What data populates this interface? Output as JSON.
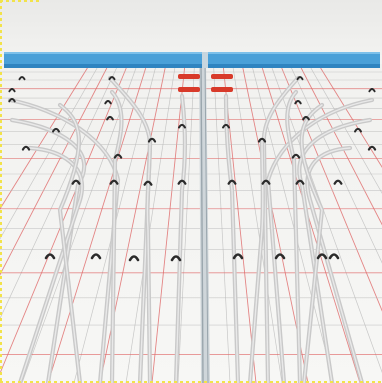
{
  "scene": {
    "subject": "underfloor-heating-pipe-layout",
    "colors": {
      "background_wall": "#efefed",
      "edge_strip": "#4aa0d8",
      "edge_strip_dark": "#2f84c0",
      "insulation_board": "#f3f3f1",
      "grid_line_gray": "#b9b9b9",
      "grid_line_red": "#e06a6a",
      "pipe": "#c9c9c9",
      "pipe_highlight": "#e9e9e9",
      "clip": "#2b2b2b",
      "manifold_marker": "#d83a2a",
      "center_divider": "#9aa6ad",
      "dotted_border": "#f2e34a"
    },
    "elements": [
      "wall",
      "blue-edge-strip",
      "insulation-board-with-grid",
      "heating-pipe-loops",
      "pipe-clips",
      "red-markers",
      "center-divider"
    ]
  }
}
